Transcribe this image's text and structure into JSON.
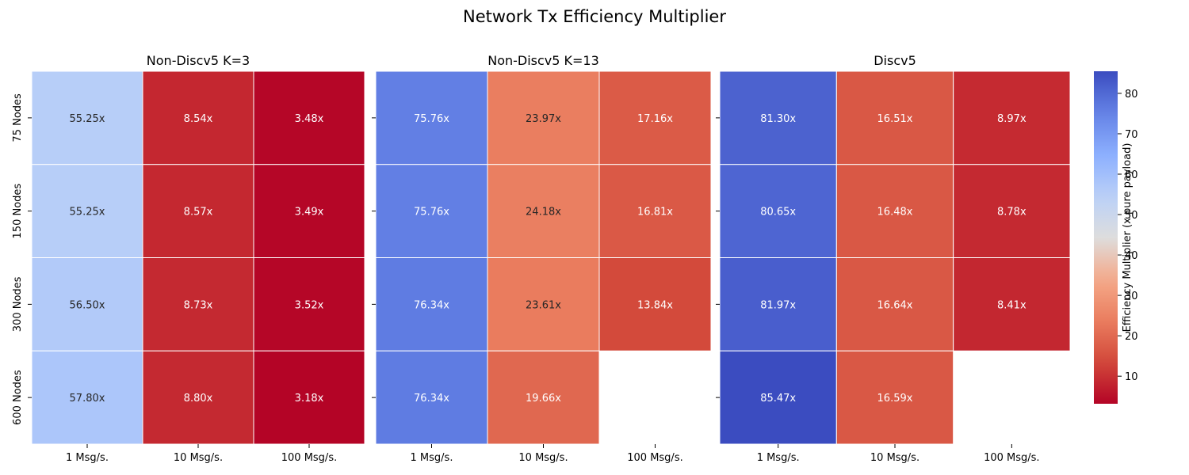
{
  "chart_data": {
    "type": "heatmap",
    "title": "Network Tx Efficiency Multiplier",
    "colorbar": {
      "label": "Efficiency Multiplier (x pure payload)",
      "range": [
        3.18,
        85.47
      ],
      "ticks": [
        10,
        20,
        30,
        40,
        50,
        60,
        70,
        80
      ],
      "colormap": "coolwarm_r"
    },
    "row_labels": [
      "75 Nodes",
      "150 Nodes",
      "300 Nodes",
      "600 Nodes"
    ],
    "col_labels": [
      "1 Msg/s.",
      "10 Msg/s.",
      "100 Msg/s."
    ],
    "panels": [
      {
        "title": "Non-Discv5 K=3",
        "values": [
          [
            55.25,
            8.54,
            3.48
          ],
          [
            55.25,
            8.57,
            3.49
          ],
          [
            56.5,
            8.73,
            3.52
          ],
          [
            57.8,
            8.8,
            3.18
          ]
        ],
        "labels": [
          [
            "55.25x",
            "8.54x",
            "3.48x"
          ],
          [
            "55.25x",
            "8.57x",
            "3.49x"
          ],
          [
            "56.50x",
            "8.73x",
            "3.52x"
          ],
          [
            "57.80x",
            "8.80x",
            "3.18x"
          ]
        ]
      },
      {
        "title": "Non-Discv5 K=13",
        "values": [
          [
            75.76,
            23.97,
            17.16
          ],
          [
            75.76,
            24.18,
            16.81
          ],
          [
            76.34,
            23.61,
            13.84
          ],
          [
            76.34,
            19.66,
            null
          ]
        ],
        "labels": [
          [
            "75.76x",
            "23.97x",
            "17.16x"
          ],
          [
            "75.76x",
            "24.18x",
            "16.81x"
          ],
          [
            "76.34x",
            "23.61x",
            "13.84x"
          ],
          [
            "76.34x",
            "19.66x",
            ""
          ]
        ]
      },
      {
        "title": "Discv5",
        "values": [
          [
            81.3,
            16.51,
            8.97
          ],
          [
            80.65,
            16.48,
            8.78
          ],
          [
            81.97,
            16.64,
            8.41
          ],
          [
            85.47,
            16.59,
            null
          ]
        ],
        "labels": [
          [
            "81.30x",
            "16.51x",
            "8.97x"
          ],
          [
            "80.65x",
            "16.48x",
            "8.78x"
          ],
          [
            "81.97x",
            "16.64x",
            "8.41x"
          ],
          [
            "85.47x",
            "16.59x",
            ""
          ]
        ]
      }
    ]
  }
}
